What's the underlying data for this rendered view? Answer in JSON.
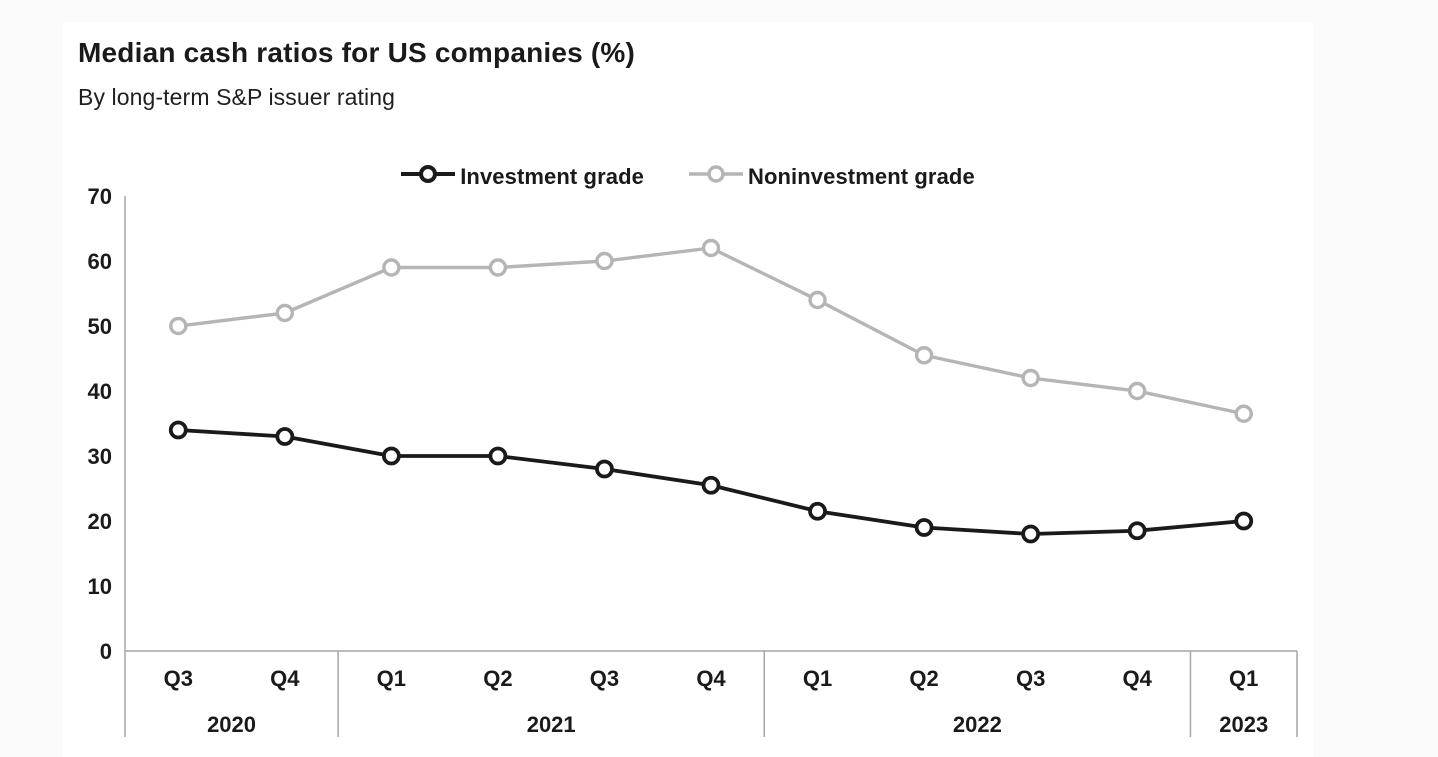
{
  "page": {
    "background": "#fbfbfb",
    "card_background": "#ffffff",
    "text_color": "#1a1a1a"
  },
  "header": {
    "title": "Median cash ratios for US companies (%)",
    "subtitle": "By long-term S&P issuer rating"
  },
  "legend": {
    "items": [
      {
        "label": "Investment grade",
        "color": "#1a1a1a"
      },
      {
        "label": "Noninvestment grade",
        "color": "#b5b5b5"
      }
    ]
  },
  "chart_data": {
    "type": "line",
    "title": "Median cash ratios for US companies (%)",
    "subtitle": "By long-term S&P issuer rating",
    "x_groups": [
      {
        "year": "2020",
        "quarters": [
          "Q3",
          "Q4"
        ]
      },
      {
        "year": "2021",
        "quarters": [
          "Q1",
          "Q2",
          "Q3",
          "Q4"
        ]
      },
      {
        "year": "2022",
        "quarters": [
          "Q1",
          "Q2",
          "Q3",
          "Q4"
        ]
      },
      {
        "year": "2023",
        "quarters": [
          "Q1"
        ]
      }
    ],
    "categories": [
      "Q3 2020",
      "Q4 2020",
      "Q1 2021",
      "Q2 2021",
      "Q3 2021",
      "Q4 2021",
      "Q1 2022",
      "Q2 2022",
      "Q3 2022",
      "Q4 2022",
      "Q1 2023"
    ],
    "series": [
      {
        "name": "Investment grade",
        "color": "#1a1a1a",
        "marker": "open-circle",
        "values": [
          34,
          33,
          30,
          30,
          28,
          25.5,
          21.5,
          19,
          18,
          18.5,
          20
        ]
      },
      {
        "name": "Noninvestment grade",
        "color": "#b5b5b5",
        "marker": "open-circle",
        "values": [
          50,
          52,
          59,
          59,
          60,
          62,
          54,
          45.5,
          42,
          40,
          36.5
        ]
      }
    ],
    "xlabel": "",
    "ylabel": "",
    "ylim": [
      0,
      70
    ],
    "yticks": [
      0,
      10,
      20,
      30,
      40,
      50,
      60,
      70
    ],
    "grid": false,
    "legend_position": "top-center",
    "axis_color": "#a6a6a6"
  }
}
